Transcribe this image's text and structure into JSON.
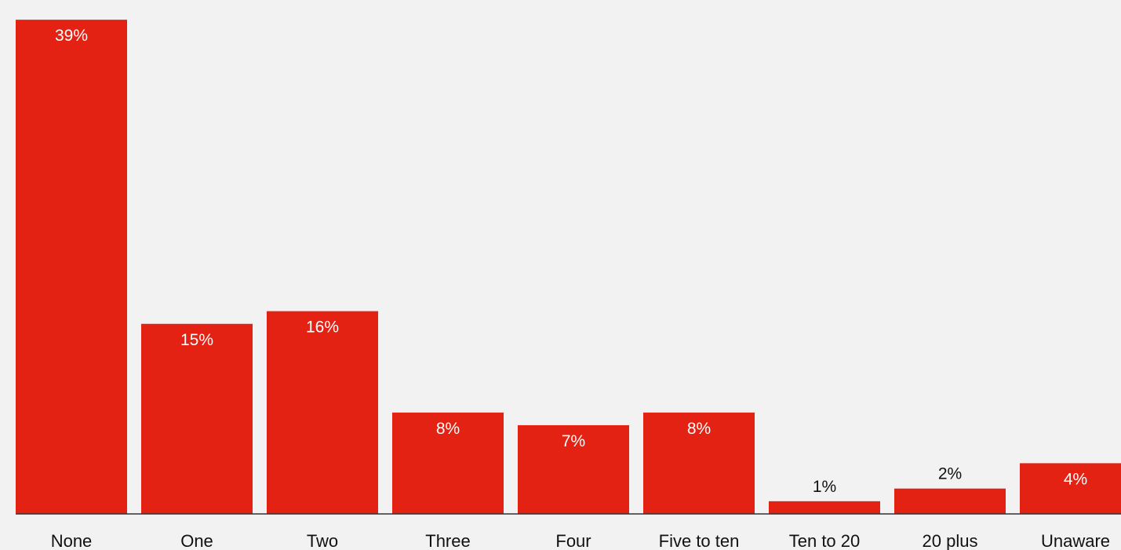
{
  "chart_data": {
    "type": "bar",
    "categories": [
      "None",
      "One",
      "Two",
      "Three",
      "Four",
      "Five to ten",
      "Ten to 20",
      "20 plus",
      "Unaware"
    ],
    "values": [
      39,
      15,
      16,
      8,
      7,
      8,
      1,
      2,
      4
    ],
    "value_labels": [
      "39%",
      "15%",
      "16%",
      "8%",
      "7%",
      "8%",
      "1%",
      "2%",
      "4%"
    ],
    "ylim": [
      0,
      40
    ],
    "grid": false,
    "colors": {
      "bar": "#e32213",
      "background": "#f2f2f2",
      "axis": "#333333",
      "label_inside": "#ffffff",
      "label_outside": "#111111",
      "category_text": "#111111"
    }
  }
}
